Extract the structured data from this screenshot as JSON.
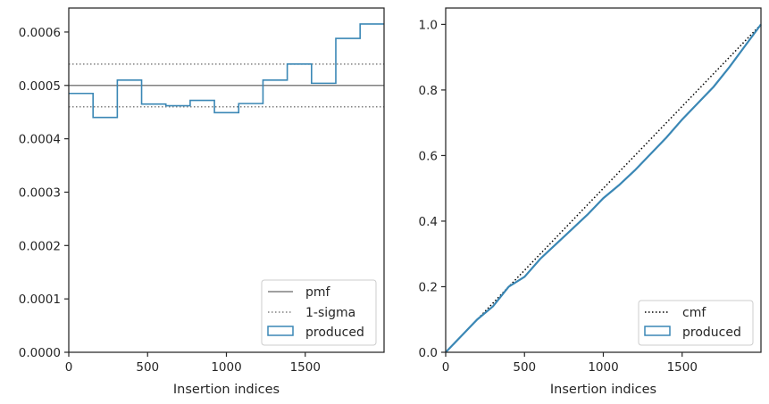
{
  "chart_data": [
    {
      "type": "step",
      "xlabel": "Insertion indices",
      "ylabel": "",
      "xlim": [
        0,
        2000
      ],
      "ylim": [
        0,
        0.000645
      ],
      "xticks": [
        0,
        500,
        1000,
        1500
      ],
      "xtick_labels": [
        "0",
        "500",
        "1000",
        "1500"
      ],
      "yticks": [
        0,
        0.0001,
        0.0002,
        0.0003,
        0.0004,
        0.0005,
        0.0006
      ],
      "ytick_labels": [
        "0.0000",
        "0.0001",
        "0.0002",
        "0.0003",
        "0.0004",
        "0.0005",
        "0.0006"
      ],
      "pmf": 0.0005,
      "sigma_band": [
        0.00046,
        0.00054
      ],
      "bin_edges": [
        0,
        154,
        308,
        462,
        616,
        770,
        924,
        1078,
        1232,
        1386,
        1540,
        1694,
        1848,
        2000
      ],
      "produced": [
        0.000485,
        0.00044,
        0.00051,
        0.000465,
        0.000462,
        0.000472,
        0.000449,
        0.000466,
        0.00051,
        0.00054,
        0.000504,
        0.000588,
        0.000615
      ],
      "legend": {
        "position": "lower-right",
        "entries": [
          "pmf",
          "1-sigma",
          "produced"
        ]
      },
      "colors": {
        "produced": "#3a87b5",
        "pmf": "#808080",
        "sigma": "#808080"
      }
    },
    {
      "type": "line",
      "xlabel": "Insertion indices",
      "ylabel": "",
      "xlim": [
        0,
        2000
      ],
      "ylim": [
        0,
        1.05
      ],
      "xticks": [
        0,
        500,
        1000,
        1500
      ],
      "xtick_labels": [
        "0",
        "500",
        "1000",
        "1500"
      ],
      "yticks": [
        0,
        0.2,
        0.4,
        0.6,
        0.8,
        1.0
      ],
      "ytick_labels": [
        "0.0",
        "0.2",
        "0.4",
        "0.6",
        "0.8",
        "1.0"
      ],
      "cmf": {
        "x": [
          0,
          2000
        ],
        "y": [
          0,
          1.0
        ]
      },
      "produced": {
        "x": [
          0,
          100,
          200,
          300,
          400,
          500,
          600,
          700,
          800,
          900,
          1000,
          1100,
          1200,
          1300,
          1400,
          1500,
          1600,
          1700,
          1800,
          1900,
          2000
        ],
        "y": [
          0,
          0.05,
          0.1,
          0.14,
          0.2,
          0.23,
          0.285,
          0.33,
          0.375,
          0.42,
          0.47,
          0.51,
          0.555,
          0.605,
          0.655,
          0.71,
          0.76,
          0.81,
          0.87,
          0.935,
          1.0
        ]
      },
      "legend": {
        "position": "lower-right",
        "entries": [
          "cmf",
          "produced"
        ]
      },
      "colors": {
        "produced": "#3a87b5",
        "cmf": "#000000"
      }
    }
  ]
}
